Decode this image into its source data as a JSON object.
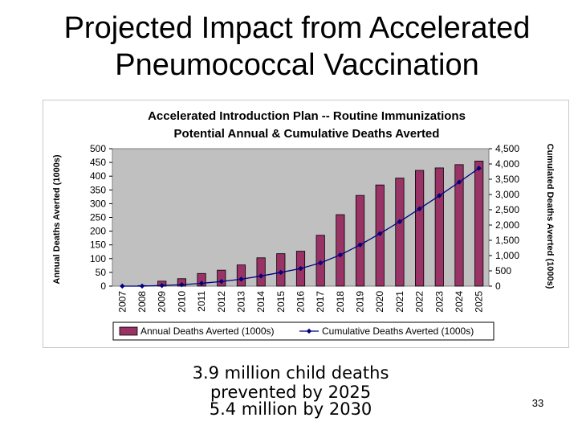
{
  "slide": {
    "title_line1": "Projected Impact from Accelerated",
    "title_line2": "Pneumococcal Vaccination",
    "caption1": "3.9 million child deaths prevented by 2025",
    "caption2": "5.4 million by 2030",
    "page_number": "33"
  },
  "colors": {
    "bar": "#993366",
    "line": "#000080",
    "plot_bg": "#c0c0c0"
  },
  "chart_data": {
    "type": "bar",
    "title": "Accelerated Introduction Plan -- Routine Immunizations",
    "subtitle": "Potential Annual & Cumulative Deaths Averted",
    "ylabel": "Annual Deaths Averted (1000s)",
    "y2label": "Cumulated Deaths Averted (1000s)",
    "ylim": [
      0,
      500
    ],
    "y2lim": [
      0,
      4500
    ],
    "yticks": [
      "0",
      "50",
      "100",
      "150",
      "200",
      "250",
      "300",
      "350",
      "400",
      "450",
      "500"
    ],
    "y2ticks": [
      "0",
      "500",
      "1,000",
      "1,500",
      "2,000",
      "2,500",
      "3,000",
      "3,500",
      "4,000",
      "4,500"
    ],
    "grid": false,
    "legend": "bottom",
    "categories": [
      "2007",
      "2008",
      "2009",
      "2010",
      "2011",
      "2012",
      "2013",
      "2014",
      "2015",
      "2016",
      "2017",
      "2018",
      "2019",
      "2020",
      "2021",
      "2022",
      "2023",
      "2024",
      "2025"
    ],
    "series": [
      {
        "name": "Annual Deaths Averted (1000s)",
        "type": "bar",
        "axis": "left",
        "values": [
          0,
          2,
          18,
          27,
          46,
          58,
          77,
          103,
          118,
          127,
          185,
          260,
          330,
          368,
          393,
          421,
          430,
          442,
          455
        ]
      },
      {
        "name": "Cumulative Deaths Averted (1000s)",
        "type": "line",
        "axis": "right",
        "values": [
          0,
          2,
          20,
          47,
          93,
          151,
          228,
          331,
          449,
          576,
          761,
          1021,
          1351,
          1719,
          2112,
          2533,
          2963,
          3405,
          3860
        ]
      }
    ]
  }
}
